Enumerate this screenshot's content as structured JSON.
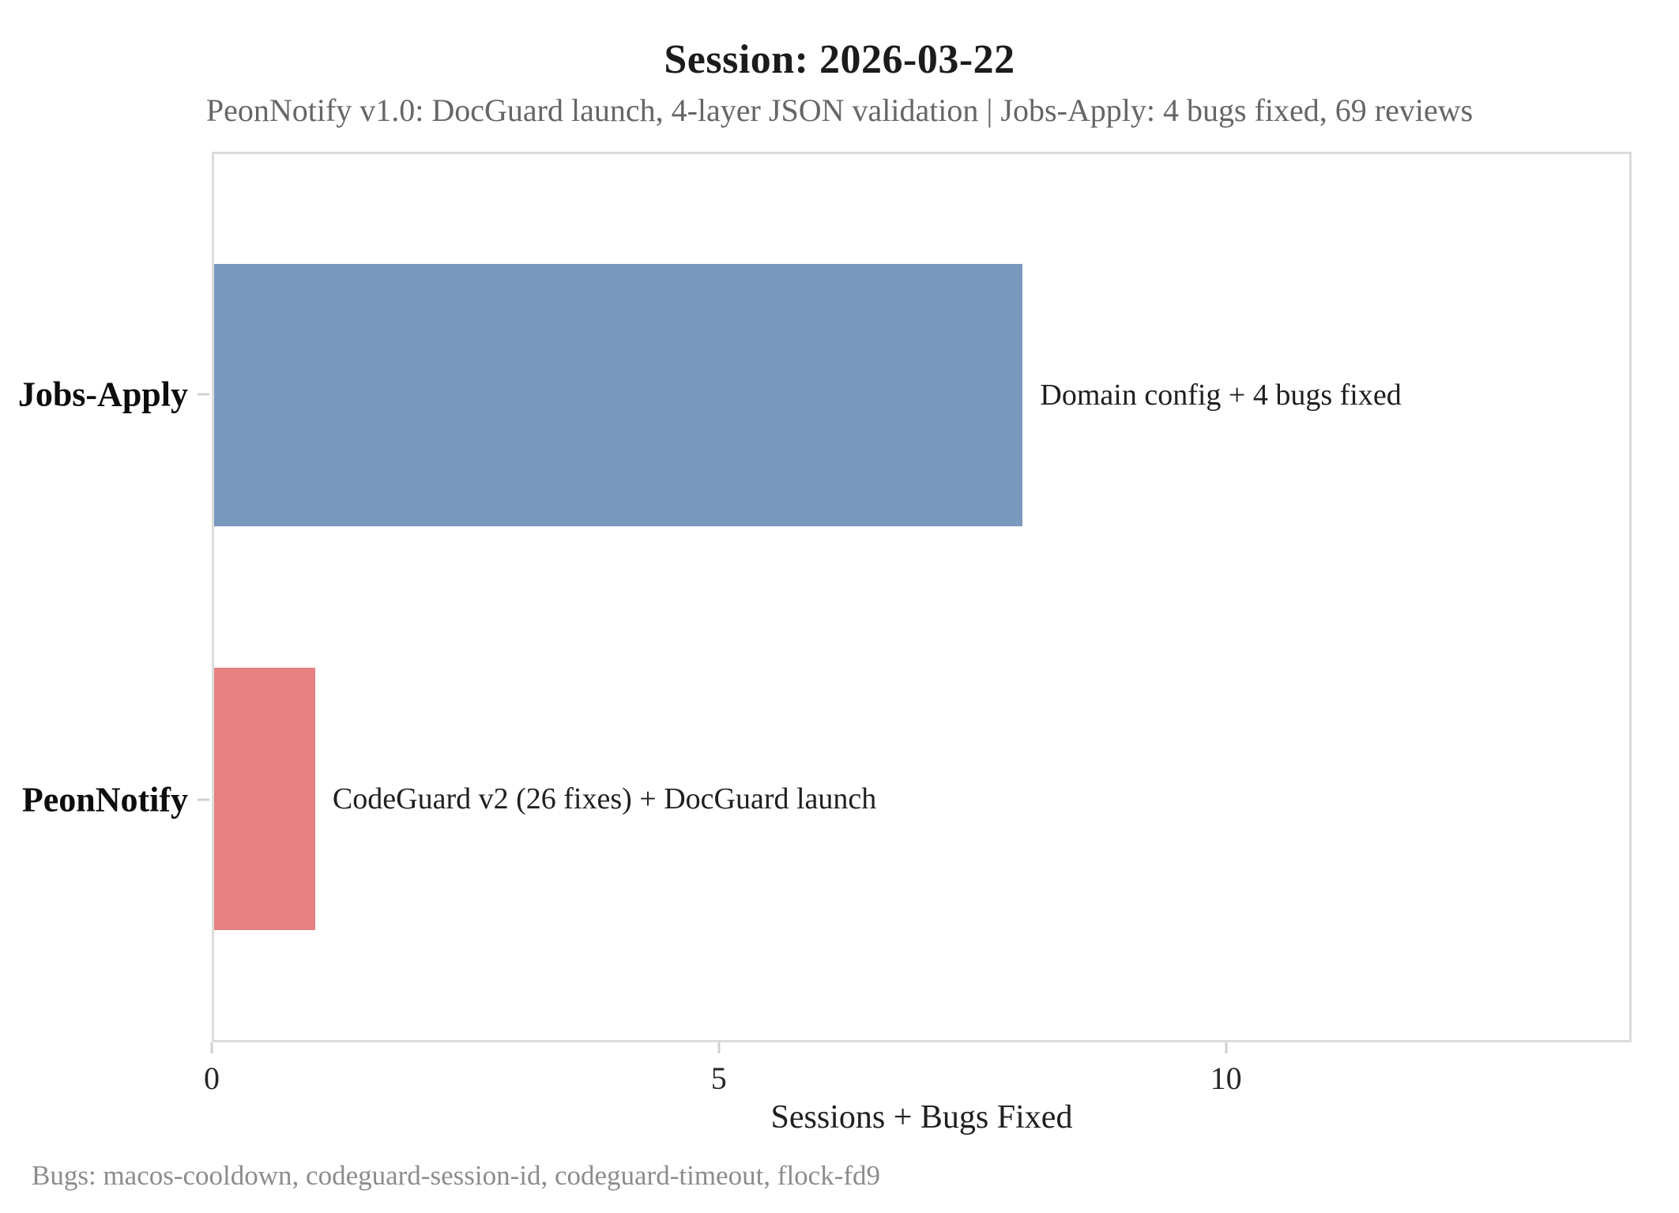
{
  "header": {
    "title": "Session: 2026-03-22",
    "subtitle": "PeonNotify v1.0: DocGuard launch, 4-layer JSON validation | Jobs-Apply: 4 bugs fixed, 69 reviews"
  },
  "footnote": "Bugs: macos-cooldown, codeguard-session-id, codeguard-timeout, flock-fd9",
  "chart_data": {
    "type": "bar",
    "orientation": "horizontal",
    "title": "Session: 2026-03-22",
    "subtitle": "PeonNotify v1.0: DocGuard launch, 4-layer JSON validation | Jobs-Apply: 4 bugs fixed, 69 reviews",
    "xlabel": "Sessions + Bugs Fixed",
    "ylabel": "",
    "xlim": [
      0,
      14
    ],
    "xticks": [
      0,
      5,
      10
    ],
    "grid": false,
    "legend": false,
    "categories": [
      "Jobs-Apply",
      "PeonNotify"
    ],
    "values": [
      8,
      1
    ],
    "bar_colors": [
      "#7a99be",
      "#e78082"
    ],
    "annotations": [
      "Domain config + 4 bugs fixed",
      "CodeGuard v2 (26 fixes) + DocGuard launch"
    ],
    "footnote": "Bugs: macos-cooldown, codeguard-session-id, codeguard-timeout, flock-fd9"
  }
}
